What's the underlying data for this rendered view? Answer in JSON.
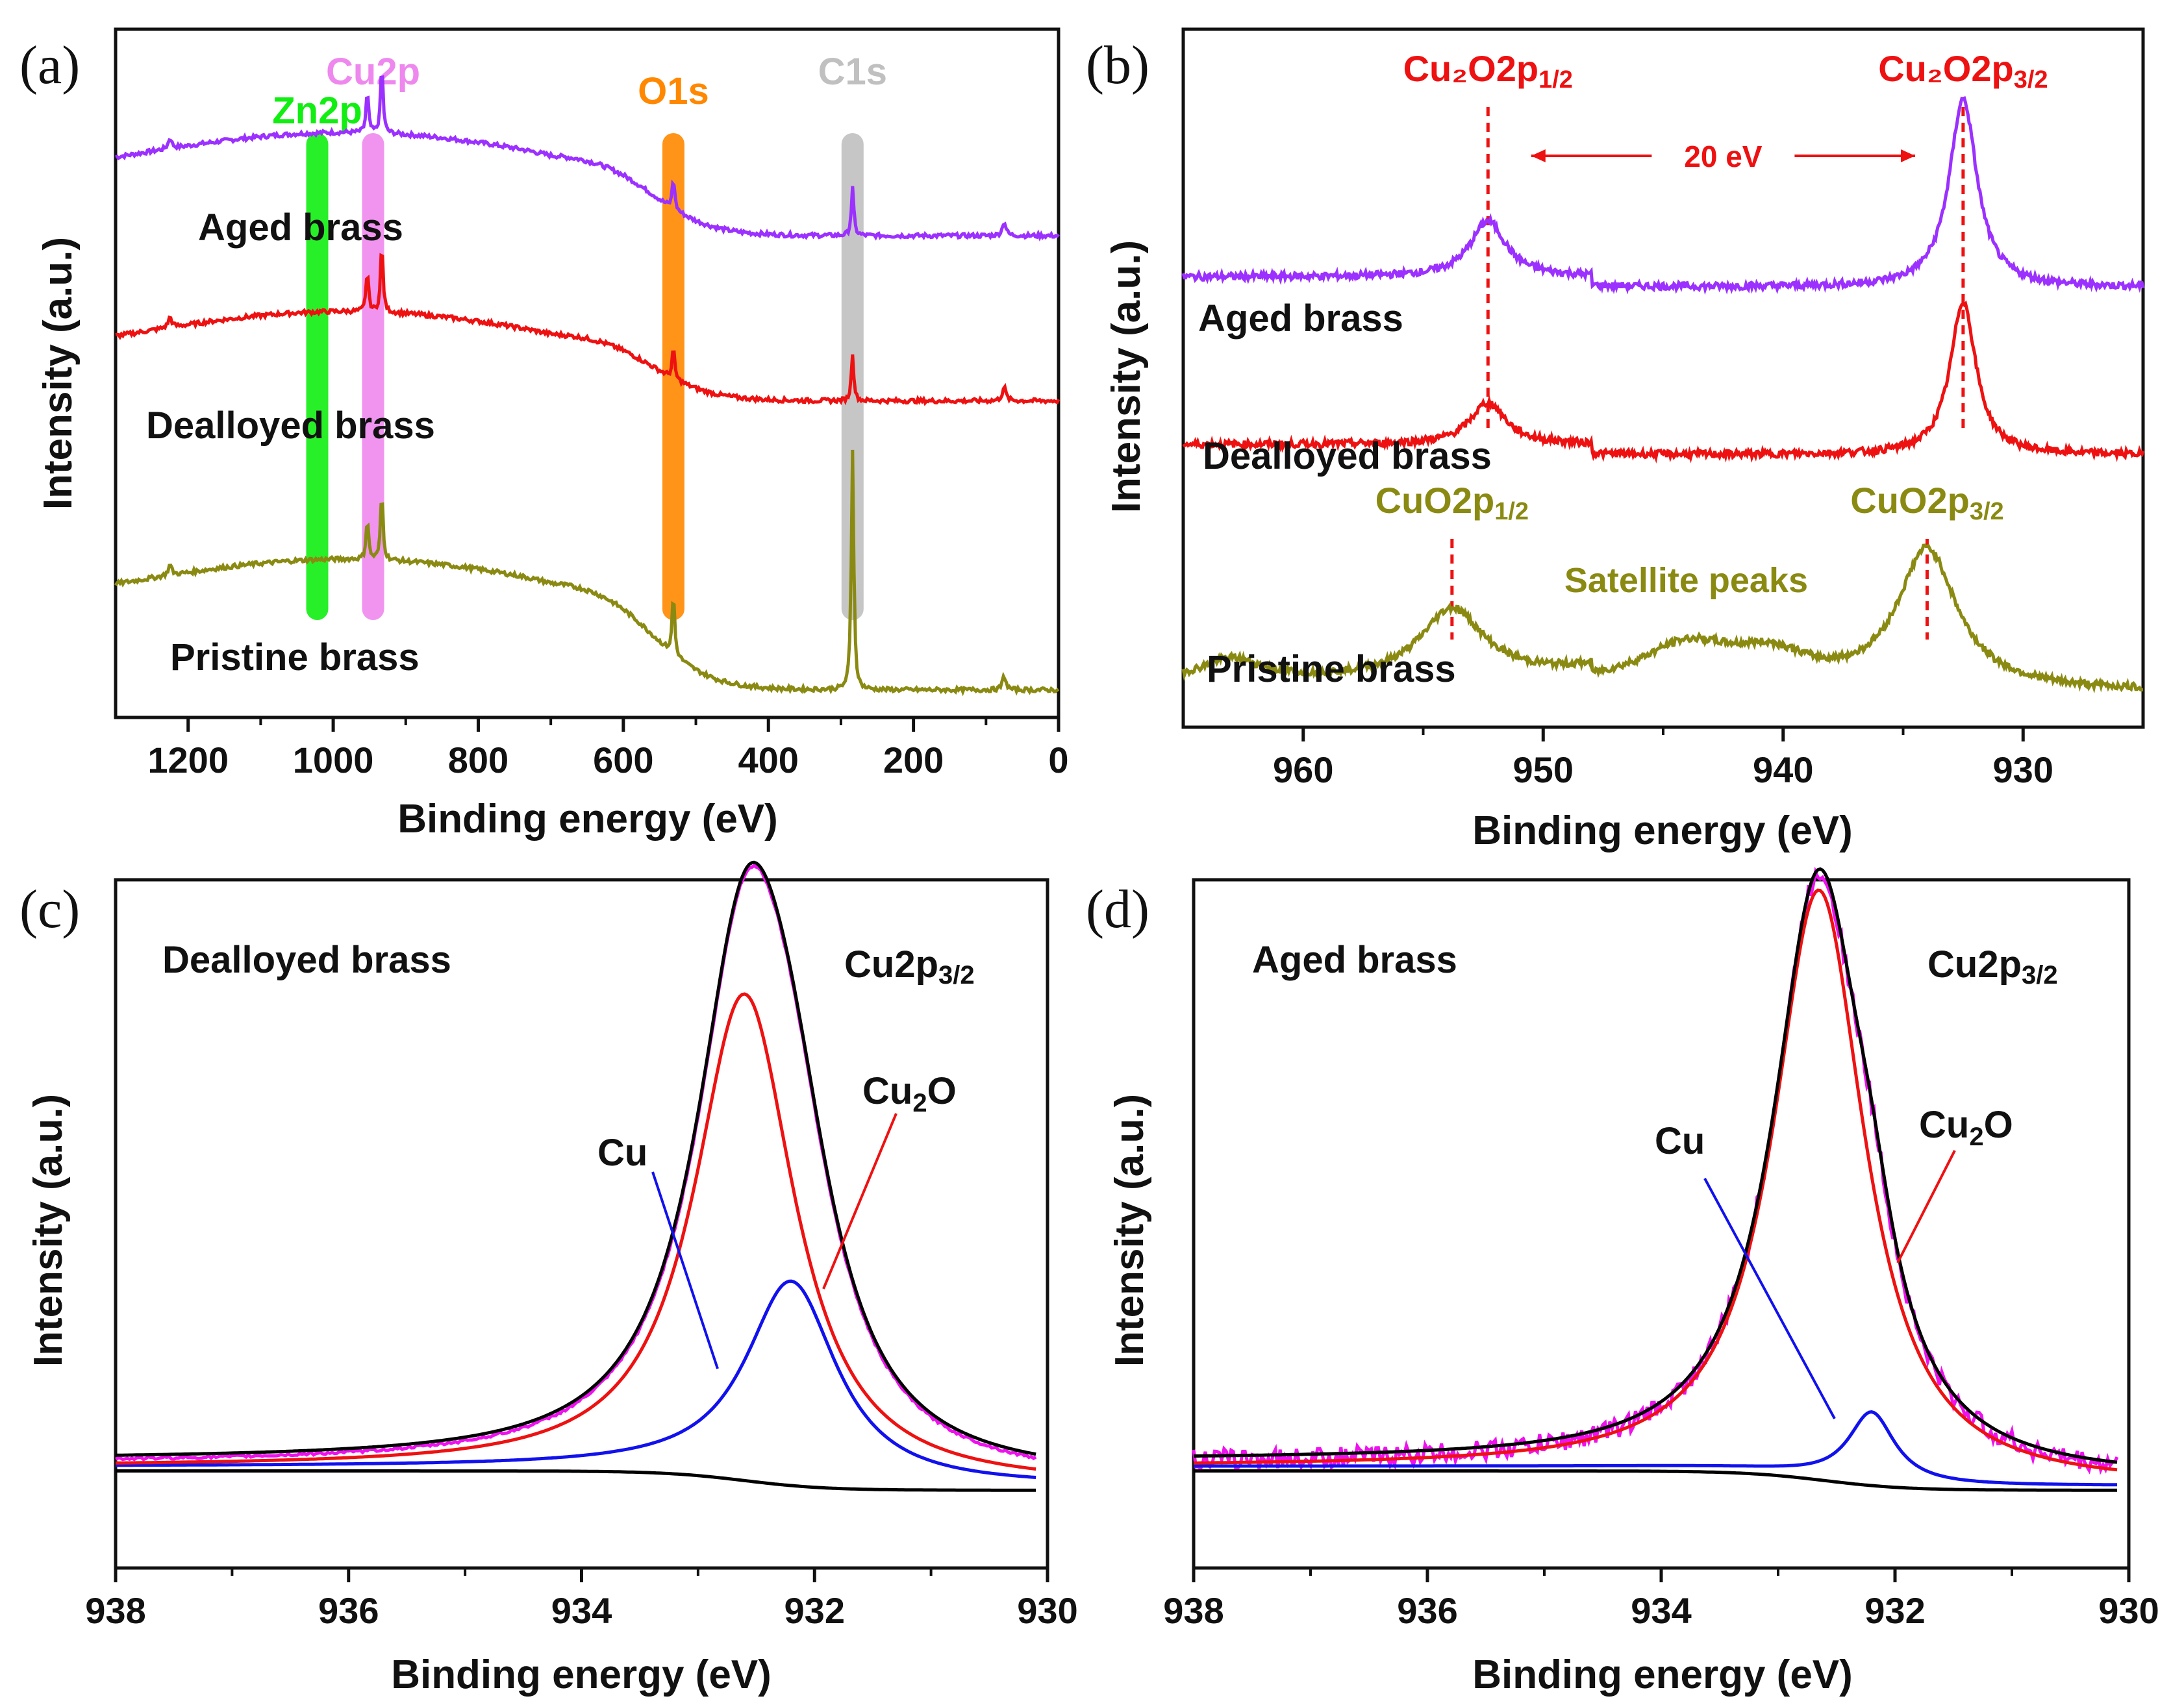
{
  "colors": {
    "aged": "#9b30ff",
    "dealloyed": "#ee1111",
    "pristine": "#8a8a12",
    "zn": "#11ee11",
    "cu2p": "#ee88ee",
    "o1s": "#ff8800",
    "c1s": "#c0c0c0",
    "fit_black": "#000000",
    "fit_magenta": "#ee11ee",
    "fit_red": "#ee1111",
    "fit_blue": "#1111ee",
    "annot_red": "#ee1111",
    "annot_olive": "#8a8a12"
  },
  "chart_data": [
    {
      "id": "a",
      "panel_label": "(a)",
      "type": "line",
      "xlabel": "Binding energy (eV)",
      "ylabel": "Intensity (a.u.)",
      "xlim": [
        1300,
        0
      ],
      "xticks": [
        "1200",
        "1000",
        "800",
        "600",
        "400",
        "200",
        "0"
      ],
      "xtick_values": [
        1200,
        1000,
        800,
        600,
        400,
        200,
        0
      ],
      "bands": [
        {
          "label": "Zn2p",
          "x": 1022,
          "color": "#11ee11"
        },
        {
          "label": "Cu2p",
          "x": 945,
          "color": "#ee88ee"
        },
        {
          "label": "O1s",
          "x": 531,
          "color": "#ff8800"
        },
        {
          "label": "C1s",
          "x": 284,
          "color": "#c0c0c0"
        }
      ],
      "series": [
        {
          "name": "Aged brass",
          "color": "#9b30ff",
          "level": 0.82,
          "drop": 0.12
        },
        {
          "name": "Dealloyed brass",
          "color": "#ee1111",
          "level": 0.56,
          "drop": 0.1
        },
        {
          "name": "Pristine brass",
          "color": "#8a8a12",
          "level": 0.2,
          "drop": 0.16
        }
      ]
    },
    {
      "id": "b",
      "panel_label": "(b)",
      "type": "line",
      "xlabel": "Binding energy (eV)",
      "ylabel": "Intensity (a.u.)",
      "xlim": [
        965,
        925
      ],
      "xticks": [
        "960",
        "950",
        "940",
        "930"
      ],
      "xtick_values": [
        960,
        950,
        940,
        930
      ],
      "series": [
        {
          "name": "Aged brass",
          "color": "#9b30ff",
          "baseline": 0.63,
          "peaks": [
            {
              "x": 952.3,
              "h": 0.08,
              "w": 0.9
            },
            {
              "x": 932.5,
              "h": 0.27,
              "w": 0.7
            }
          ]
        },
        {
          "name": "Dealloyed brass",
          "color": "#ee1111",
          "baseline": 0.39,
          "peaks": [
            {
              "x": 952.3,
              "h": 0.06,
              "w": 0.9
            },
            {
              "x": 932.5,
              "h": 0.22,
              "w": 0.65
            }
          ]
        },
        {
          "name": "Pristine brass",
          "color": "#8a8a12",
          "baseline": 0.05,
          "peaks": [
            {
              "x": 953.8,
              "h": 0.1,
              "w": 1.6
            },
            {
              "x": 934.0,
              "h": 0.2,
              "w": 1.5
            },
            {
              "x": 944.0,
              "h": 0.06,
              "w": 2.5
            },
            {
              "x": 940.5,
              "h": 0.04,
              "w": 2.0
            },
            {
              "x": 963.0,
              "h": 0.03,
              "w": 1.5
            }
          ]
        }
      ],
      "annotations": [
        {
          "text": "Cu₂O2p",
          "sub": "1/2",
          "color": "#ee1111",
          "x": 952.3
        },
        {
          "text": "Cu₂O2p",
          "sub": "3/2",
          "color": "#ee1111",
          "x": 932.5
        },
        {
          "text": "20 eV",
          "color": "#ee1111",
          "from": 950.5,
          "to": 934.5
        },
        {
          "text": "CuO2p",
          "sub": "1/2",
          "color": "#8a8a12",
          "x": 953.8
        },
        {
          "text": "CuO2p",
          "sub": "3/2",
          "color": "#8a8a12",
          "x": 934.0
        },
        {
          "text": "Satellite peaks",
          "color": "#8a8a12",
          "x": 943.5
        }
      ]
    },
    {
      "id": "c",
      "panel_label": "(c)",
      "type": "line",
      "title": "Dealloyed brass",
      "peak_label": "Cu2p",
      "peak_label_sub": "3/2",
      "xlabel": "Binding energy (eV)",
      "ylabel": "Intensity (a.u.)",
      "xlim": [
        938,
        930
      ],
      "xticks": [
        "938",
        "936",
        "934",
        "932",
        "930"
      ],
      "xtick_values": [
        938,
        936,
        934,
        932,
        930
      ],
      "components": [
        {
          "name": "Cu",
          "x": 932.2,
          "h": 0.29,
          "w": 0.5,
          "color": "#1111ee"
        },
        {
          "name": "Cu₂O",
          "x": 932.6,
          "h": 0.7,
          "w": 0.55,
          "color": "#ee1111"
        }
      ],
      "labels": [
        {
          "text": "Cu",
          "color": "#1111ee"
        },
        {
          "text": "Cu",
          "sub": "2",
          "after": "O",
          "color": "#ee1111"
        }
      ]
    },
    {
      "id": "d",
      "panel_label": "(d)",
      "type": "line",
      "title": "Aged brass",
      "peak_label": "Cu2p",
      "peak_label_sub": "3/2",
      "xlabel": "Binding energy (eV)",
      "ylabel": "Intensity (a.u.)",
      "xlim": [
        938,
        930
      ],
      "xticks": [
        "938",
        "936",
        "934",
        "932",
        "930"
      ],
      "xtick_values": [
        938,
        936,
        934,
        932,
        930
      ],
      "components": [
        {
          "name": "Cu",
          "x": 932.2,
          "h": 0.1,
          "w": 0.25,
          "color": "#1111ee"
        },
        {
          "name": "Cu₂O",
          "x": 932.65,
          "h": 0.85,
          "w": 0.5,
          "color": "#ee1111"
        }
      ],
      "labels": [
        {
          "text": "Cu",
          "color": "#1111ee"
        },
        {
          "text": "Cu",
          "sub": "2",
          "after": "O",
          "color": "#ee1111"
        }
      ]
    }
  ]
}
